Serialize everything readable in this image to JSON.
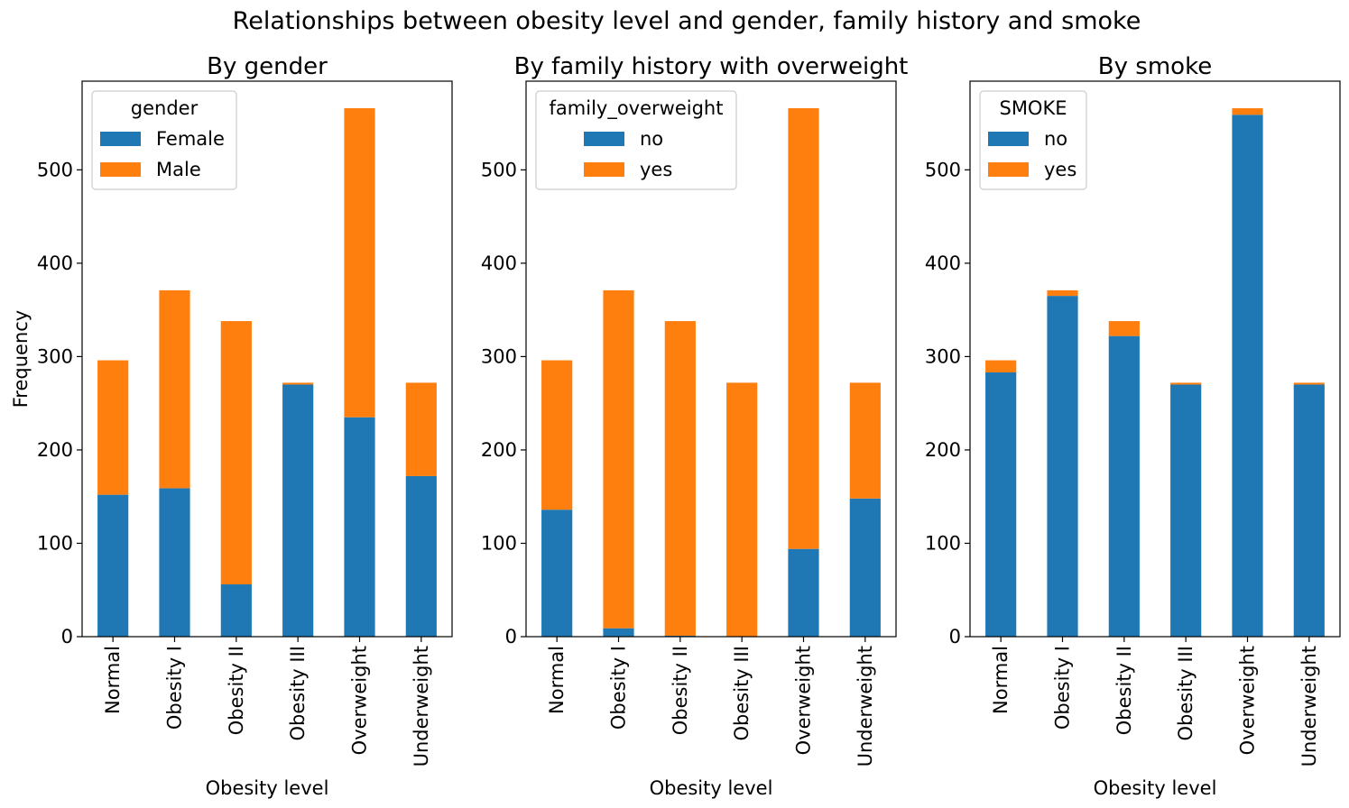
{
  "chart_title": "Relationships between obesity level and gender, family history and smoke",
  "chart_data": [
    {
      "type": "bar",
      "stacked": true,
      "title": "By gender",
      "xlabel": "Obesity level",
      "ylabel": "Frequency",
      "ylim": [
        0,
        595
      ],
      "yticks": [
        0,
        100,
        200,
        300,
        400,
        500
      ],
      "categories": [
        "Normal",
        "Obesity I",
        "Obesity II",
        "Obesity III",
        "Overweight",
        "Underweight"
      ],
      "legend_title": "gender",
      "legend_position": "top-left",
      "series": [
        {
          "name": "Female",
          "color": "#1f77b4",
          "values": [
            152,
            159,
            56,
            270,
            235,
            172
          ]
        },
        {
          "name": "Male",
          "color": "#ff7f0e",
          "values": [
            144,
            212,
            282,
            2,
            331,
            100
          ]
        }
      ]
    },
    {
      "type": "bar",
      "stacked": true,
      "title": "By family history with overweight",
      "xlabel": "Obesity level",
      "ylabel": "",
      "ylim": [
        0,
        595
      ],
      "yticks": [
        0,
        100,
        200,
        300,
        400,
        500
      ],
      "categories": [
        "Normal",
        "Obesity I",
        "Obesity II",
        "Obesity III",
        "Overweight",
        "Underweight"
      ],
      "legend_title": "family_overweight",
      "legend_position": "top-left",
      "series": [
        {
          "name": "no",
          "color": "#1f77b4",
          "values": [
            136,
            9,
            1,
            0,
            94,
            148
          ]
        },
        {
          "name": "yes",
          "color": "#ff7f0e",
          "values": [
            160,
            362,
            337,
            272,
            472,
            124
          ]
        }
      ]
    },
    {
      "type": "bar",
      "stacked": true,
      "title": "By smoke",
      "xlabel": "Obesity level",
      "ylabel": "",
      "ylim": [
        0,
        595
      ],
      "yticks": [
        0,
        100,
        200,
        300,
        400,
        500
      ],
      "categories": [
        "Normal",
        "Obesity I",
        "Obesity II",
        "Obesity III",
        "Overweight",
        "Underweight"
      ],
      "legend_title": "SMOKE",
      "legend_position": "top-left",
      "series": [
        {
          "name": "no",
          "color": "#1f77b4",
          "values": [
            283,
            365,
            322,
            270,
            559,
            270
          ]
        },
        {
          "name": "yes",
          "color": "#ff7f0e",
          "values": [
            13,
            6,
            16,
            2,
            7,
            2
          ]
        }
      ]
    }
  ]
}
